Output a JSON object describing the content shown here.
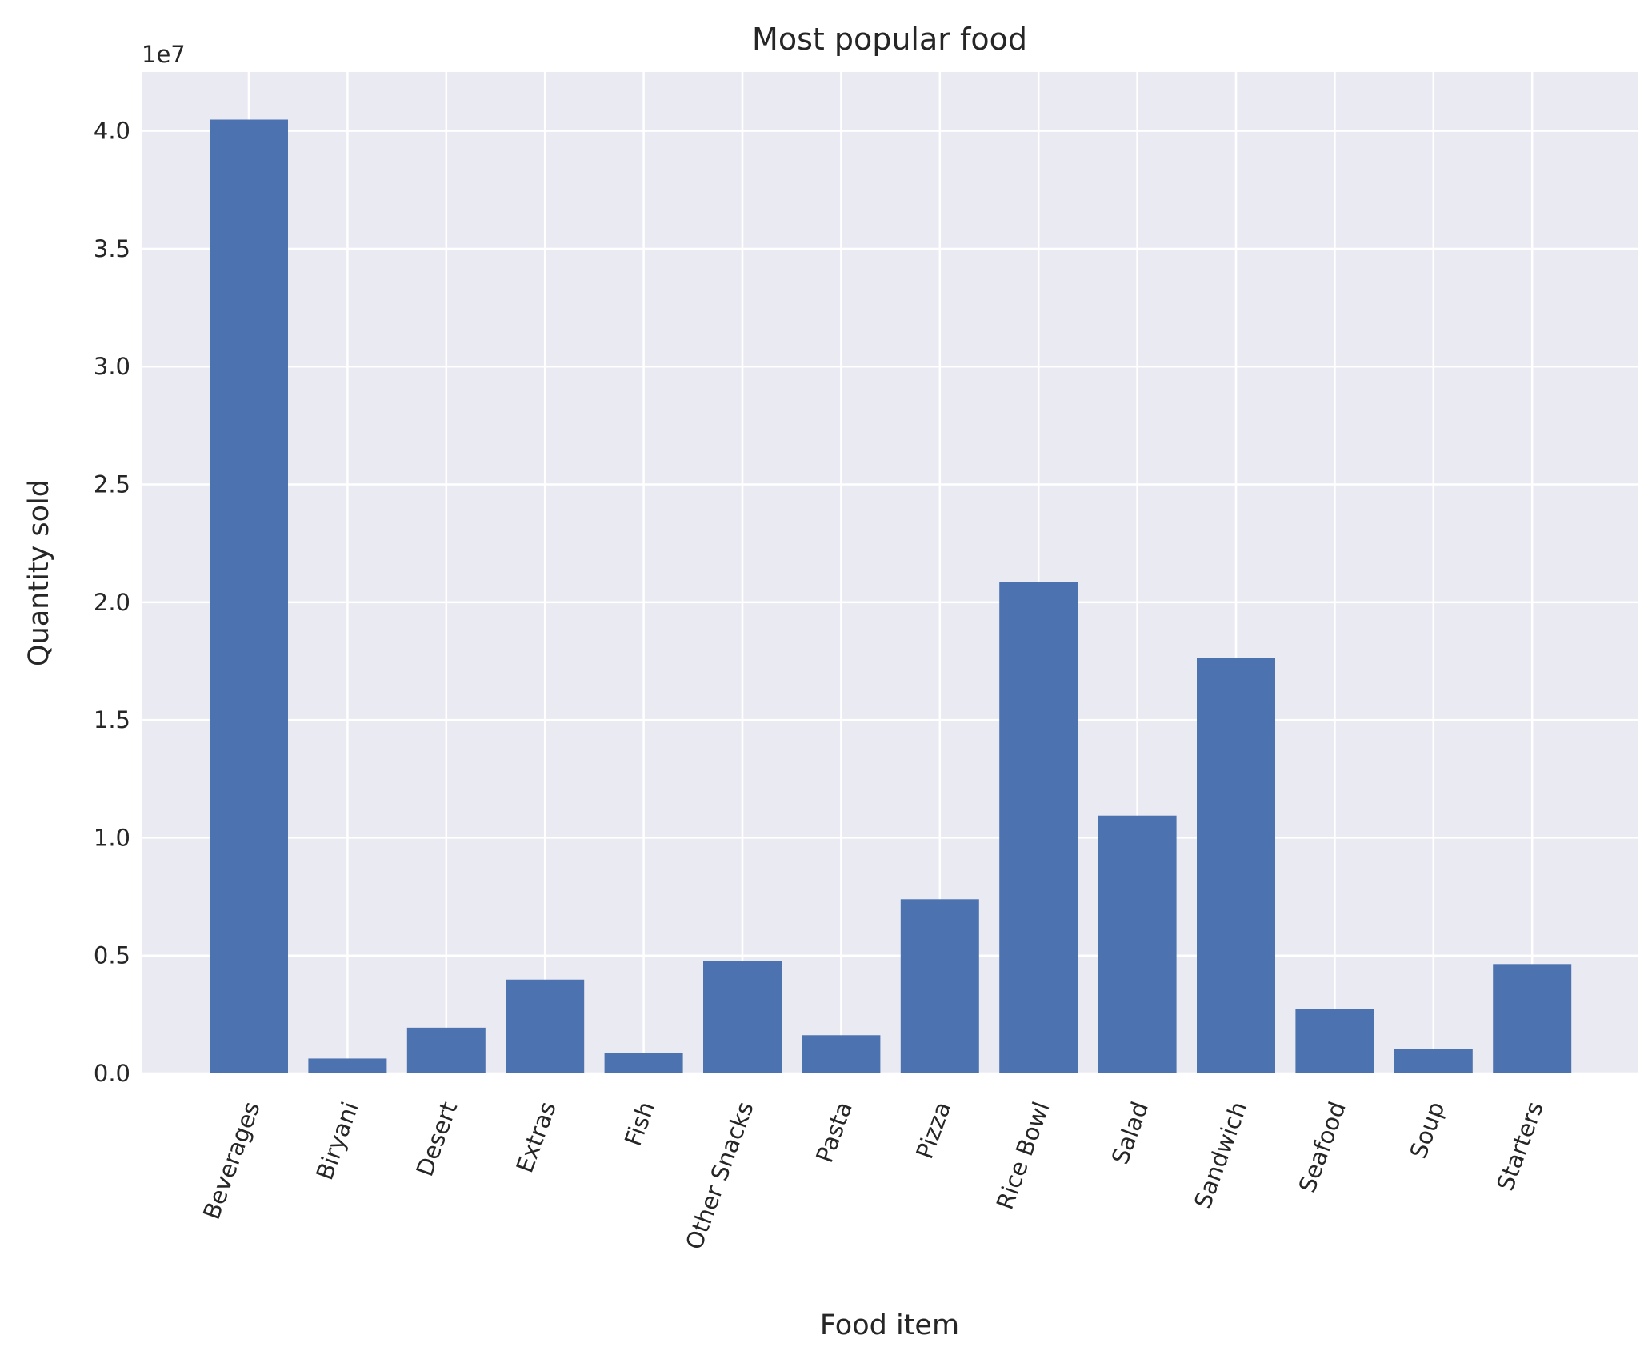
{
  "chart_data": {
    "type": "bar",
    "title": "Most popular food",
    "xlabel": "Food item",
    "ylabel": "Quantity sold",
    "offset_label": "1e7",
    "categories": [
      "Beverages",
      "Biryani",
      "Desert",
      "Extras",
      "Fish",
      "Other Snacks",
      "Pasta",
      "Pizza",
      "Rice Bowl",
      "Salad",
      "Sandwich",
      "Seafood",
      "Soup",
      "Starters"
    ],
    "values": [
      40480000,
      630000,
      1940000,
      3980000,
      870000,
      4770000,
      1620000,
      7390000,
      20870000,
      10940000,
      17630000,
      2720000,
      1030000,
      4640000
    ],
    "ylim": [
      0,
      42500000
    ],
    "yticks": [
      0,
      5000000,
      10000000,
      15000000,
      20000000,
      25000000,
      30000000,
      35000000,
      40000000
    ],
    "ytick_labels": [
      "0.0",
      "0.5",
      "1.0",
      "1.5",
      "2.0",
      "2.5",
      "3.0",
      "3.5",
      "4.0"
    ],
    "grid": true,
    "bar_color": "#4c72b0",
    "background_color": "#eaeaf2",
    "grid_color": "#ffffff"
  }
}
